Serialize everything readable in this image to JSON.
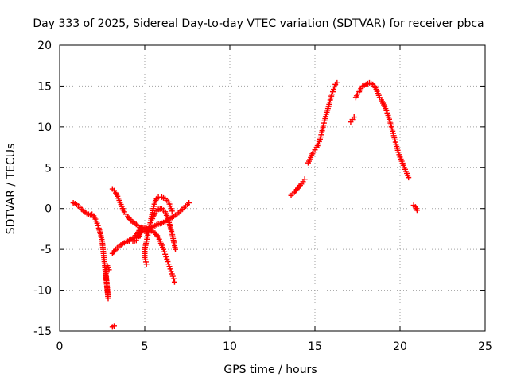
{
  "chart_data": {
    "type": "scatter",
    "title": "Day 333 of 2025, Sidereal Day-to-day VTEC variation (SDTVAR) for receiver pbca",
    "xlabel": "GPS time / hours",
    "ylabel": "SDTVAR / TECUs",
    "xlim": [
      0,
      25
    ],
    "ylim": [
      -15,
      20
    ],
    "xticks": [
      0,
      5,
      10,
      15,
      20,
      25
    ],
    "yticks": [
      -15,
      -10,
      -5,
      0,
      5,
      10,
      15,
      20
    ],
    "grid": true,
    "marker": "plus",
    "color": "#ff0000",
    "series": [
      {
        "points": [
          [
            0.8,
            0.7
          ],
          [
            1.0,
            0.5
          ],
          [
            1.2,
            0.1
          ],
          [
            1.4,
            -0.3
          ],
          [
            1.6,
            -0.6
          ],
          [
            1.8,
            -0.8
          ],
          [
            1.9,
            -0.7
          ],
          [
            2.0,
            -0.9
          ],
          [
            2.1,
            -1.3
          ],
          [
            2.2,
            -1.8
          ],
          [
            2.3,
            -2.4
          ],
          [
            2.4,
            -3.1
          ],
          [
            2.5,
            -4.0
          ],
          [
            2.55,
            -5.0
          ],
          [
            2.6,
            -6.0
          ],
          [
            2.65,
            -7.0
          ],
          [
            2.7,
            -8.0
          ],
          [
            2.75,
            -9.0
          ],
          [
            2.8,
            -10.0
          ],
          [
            2.85,
            -11.0
          ],
          [
            2.7,
            -7.5
          ],
          [
            2.8,
            -7.0
          ],
          [
            2.9,
            -7.5
          ]
        ]
      },
      {
        "points": [
          [
            3.1,
            -14.5
          ],
          [
            3.2,
            -14.4
          ]
        ]
      },
      {
        "points": [
          [
            3.1,
            -5.5
          ],
          [
            3.3,
            -5.0
          ],
          [
            3.5,
            -4.6
          ],
          [
            3.7,
            -4.3
          ],
          [
            3.9,
            -4.1
          ],
          [
            4.1,
            -4.0
          ],
          [
            4.3,
            -4.0
          ],
          [
            4.5,
            -3.9
          ],
          [
            4.6,
            -3.6
          ],
          [
            4.7,
            -3.2
          ],
          [
            4.8,
            -2.8
          ],
          [
            5.0,
            -2.5
          ],
          [
            5.2,
            -2.5
          ],
          [
            5.4,
            -2.3
          ],
          [
            5.6,
            -2.1
          ],
          [
            5.8,
            -1.9
          ],
          [
            6.0,
            -1.8
          ],
          [
            6.2,
            -1.6
          ],
          [
            6.4,
            -1.3
          ],
          [
            6.6,
            -1.1
          ],
          [
            6.8,
            -0.8
          ],
          [
            7.0,
            -0.5
          ],
          [
            7.2,
            -0.1
          ],
          [
            7.4,
            0.3
          ],
          [
            7.6,
            0.7
          ]
        ]
      },
      {
        "points": [
          [
            3.1,
            2.4
          ],
          [
            3.2,
            2.2
          ],
          [
            3.3,
            1.9
          ],
          [
            3.4,
            1.5
          ],
          [
            3.5,
            1.0
          ],
          [
            3.6,
            0.5
          ],
          [
            3.7,
            0.0
          ],
          [
            3.8,
            -0.4
          ],
          [
            3.9,
            -0.7
          ],
          [
            4.0,
            -1.0
          ],
          [
            4.2,
            -1.5
          ],
          [
            4.4,
            -1.8
          ],
          [
            4.6,
            -2.1
          ],
          [
            4.8,
            -2.5
          ],
          [
            5.0,
            -2.8
          ],
          [
            5.1,
            -3.0
          ],
          [
            5.2,
            -2.6
          ],
          [
            5.3,
            -2.0
          ],
          [
            5.4,
            -1.5
          ],
          [
            5.5,
            -1.0
          ],
          [
            5.6,
            -0.6
          ],
          [
            5.7,
            -0.3
          ],
          [
            5.8,
            -0.1
          ],
          [
            6.0,
            0.0
          ],
          [
            6.2,
            -0.4
          ],
          [
            6.4,
            -1.5
          ],
          [
            6.6,
            -3.0
          ],
          [
            6.8,
            -5.0
          ]
        ]
      },
      {
        "points": [
          [
            5.1,
            -6.8
          ],
          [
            5.0,
            -6.0
          ],
          [
            5.0,
            -5.0
          ],
          [
            5.1,
            -4.0
          ],
          [
            5.2,
            -3.0
          ],
          [
            5.3,
            -2.0
          ],
          [
            5.4,
            -1.0
          ],
          [
            5.5,
            0.0
          ],
          [
            5.6,
            0.8
          ],
          [
            5.7,
            1.2
          ],
          [
            5.8,
            1.4
          ],
          [
            6.0,
            1.4
          ],
          [
            6.2,
            1.2
          ],
          [
            6.4,
            0.8
          ],
          [
            6.5,
            0.3
          ],
          [
            6.6,
            -0.3
          ]
        ]
      },
      {
        "points": [
          [
            4.0,
            -4.0
          ],
          [
            4.4,
            -3.5
          ],
          [
            4.8,
            -2.3
          ],
          [
            5.2,
            -2.5
          ],
          [
            5.6,
            -3.0
          ],
          [
            5.8,
            -3.5
          ],
          [
            5.9,
            -4.0
          ],
          [
            6.0,
            -4.5
          ],
          [
            6.1,
            -5.0
          ],
          [
            6.2,
            -5.6
          ],
          [
            6.3,
            -6.2
          ],
          [
            6.4,
            -6.8
          ],
          [
            6.5,
            -7.4
          ],
          [
            6.6,
            -8.0
          ],
          [
            6.7,
            -8.6
          ],
          [
            6.75,
            -9.0
          ]
        ]
      },
      {
        "points": [
          [
            13.6,
            1.6
          ],
          [
            13.8,
            2.0
          ],
          [
            14.0,
            2.5
          ],
          [
            14.2,
            3.0
          ],
          [
            14.3,
            3.3
          ],
          [
            14.4,
            3.6
          ]
        ]
      },
      {
        "points": [
          [
            14.6,
            5.6
          ],
          [
            14.7,
            6.0
          ],
          [
            14.8,
            6.5
          ],
          [
            14.9,
            6.9
          ],
          [
            15.0,
            7.2
          ],
          [
            15.1,
            7.5
          ],
          [
            15.2,
            7.9
          ],
          [
            15.3,
            8.5
          ],
          [
            15.4,
            9.3
          ],
          [
            15.5,
            10.2
          ],
          [
            15.6,
            11.0
          ],
          [
            15.7,
            11.8
          ],
          [
            15.8,
            12.5
          ],
          [
            15.9,
            13.3
          ],
          [
            16.0,
            14.0
          ],
          [
            16.1,
            14.6
          ],
          [
            16.2,
            15.2
          ],
          [
            16.3,
            15.4
          ]
        ]
      },
      {
        "points": [
          [
            17.1,
            10.6
          ],
          [
            17.2,
            10.9
          ],
          [
            17.3,
            11.2
          ]
        ]
      },
      {
        "points": [
          [
            17.4,
            13.6
          ],
          [
            17.5,
            14.0
          ],
          [
            17.6,
            14.3
          ],
          [
            17.7,
            14.7
          ],
          [
            17.8,
            15.0
          ],
          [
            17.9,
            15.1
          ],
          [
            18.0,
            15.2
          ],
          [
            18.1,
            15.3
          ],
          [
            18.2,
            15.4
          ],
          [
            18.3,
            15.3
          ],
          [
            18.4,
            15.2
          ],
          [
            18.5,
            15.0
          ],
          [
            18.6,
            14.6
          ],
          [
            18.7,
            14.1
          ],
          [
            18.8,
            13.6
          ],
          [
            18.9,
            13.3
          ],
          [
            19.0,
            12.9
          ],
          [
            19.1,
            12.5
          ],
          [
            19.2,
            12.0
          ],
          [
            19.3,
            11.4
          ],
          [
            19.4,
            10.7
          ],
          [
            19.5,
            10.0
          ],
          [
            19.6,
            9.2
          ],
          [
            19.7,
            8.4
          ],
          [
            19.8,
            7.6
          ],
          [
            19.9,
            6.9
          ],
          [
            20.0,
            6.3
          ],
          [
            20.1,
            5.8
          ],
          [
            20.2,
            5.3
          ],
          [
            20.3,
            4.8
          ],
          [
            20.4,
            4.3
          ],
          [
            20.5,
            3.8
          ]
        ]
      },
      {
        "points": [
          [
            20.8,
            0.4
          ],
          [
            20.9,
            0.2
          ],
          [
            21.0,
            -0.2
          ]
        ]
      }
    ]
  }
}
